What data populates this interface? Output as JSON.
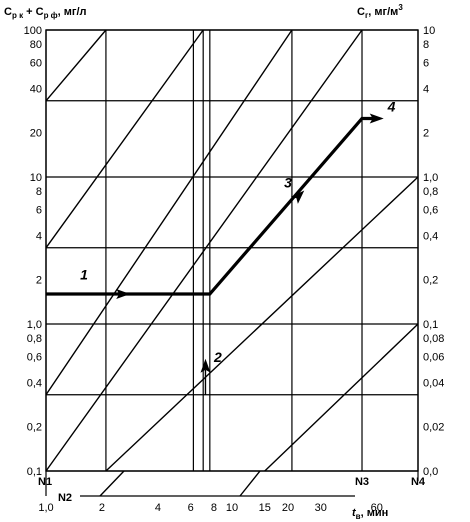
{
  "chart_data": {
    "type": "line",
    "left_axis": {
      "title_main": "C",
      "title_sub1": "р к",
      "title_plus": " + C",
      "title_sub2": "р ф",
      "title_unit": ", мг/л",
      "scale": "log",
      "range": [
        0.1,
        100
      ],
      "ticks": [
        {
          "v": 100,
          "label": "100"
        },
        {
          "v": 80,
          "label": "80"
        },
        {
          "v": 60,
          "label": "60"
        },
        {
          "v": 40,
          "label": "40"
        },
        {
          "v": 20,
          "label": "20"
        },
        {
          "v": 10,
          "label": "10"
        },
        {
          "v": 8,
          "label": "8"
        },
        {
          "v": 6,
          "label": "6"
        },
        {
          "v": 4,
          "label": "4"
        },
        {
          "v": 2,
          "label": "2"
        },
        {
          "v": 1,
          "label": "1,0"
        },
        {
          "v": 0.8,
          "label": "0,8"
        },
        {
          "v": 0.6,
          "label": "0,6"
        },
        {
          "v": 0.4,
          "label": "0,4"
        },
        {
          "v": 0.2,
          "label": "0,2"
        },
        {
          "v": 0.1,
          "label": "0,1"
        }
      ]
    },
    "right_axis": {
      "title_main": "C",
      "title_sub": "г",
      "title_unit": ", мг/м",
      "title_sup": "3",
      "ticks": [
        {
          "v": 100,
          "label": "10"
        },
        {
          "v": 80,
          "label": "8"
        },
        {
          "v": 60,
          "label": "6"
        },
        {
          "v": 40,
          "label": "4"
        },
        {
          "v": 20,
          "label": "2"
        },
        {
          "v": 10,
          "label": "1,0"
        },
        {
          "v": 8,
          "label": "0,8"
        },
        {
          "v": 6,
          "label": "0,6"
        },
        {
          "v": 4,
          "label": "0,4"
        },
        {
          "v": 2,
          "label": "0,2"
        },
        {
          "v": 1,
          "label": "0,1"
        },
        {
          "v": 0.8,
          "label": "0,08"
        },
        {
          "v": 0.6,
          "label": "0,06"
        },
        {
          "v": 0.4,
          "label": "0,04"
        },
        {
          "v": 0.2,
          "label": "0,02"
        },
        {
          "v": 0.1,
          "label": "0,0"
        }
      ]
    },
    "x_axis": {
      "title_main": "t",
      "title_sub": "в",
      "title_unit": ", мин",
      "scale": "log",
      "range": [
        1,
        100
      ],
      "ticks": [
        {
          "v": 1,
          "label": "1,0"
        },
        {
          "v": 2,
          "label": "2"
        },
        {
          "v": 4,
          "label": "4"
        },
        {
          "v": 6,
          "label": "6"
        },
        {
          "v": 8,
          "label": "8"
        },
        {
          "v": 10,
          "label": "10"
        },
        {
          "v": 15,
          "label": "15"
        },
        {
          "v": 20,
          "label": "20"
        },
        {
          "v": 30,
          "label": "30"
        },
        {
          "v": 60,
          "label": "60"
        }
      ]
    },
    "horizontal_grid": [
      0.1,
      0.33,
      1,
      3.3,
      10,
      33,
      100
    ],
    "vertical_grid": [
      1.0,
      2.1,
      6.2,
      7.0,
      7.6,
      21,
      50,
      100
    ],
    "diagonals": [
      {
        "x0": 1,
        "y0": 33,
        "x1": 2.1,
        "y1": 100
      },
      {
        "x0": 1,
        "y0": 3.3,
        "x1": 7.0,
        "y1": 100
      },
      {
        "x0": 1,
        "y0": 0.33,
        "x1": 21,
        "y1": 100
      },
      {
        "x0": 1,
        "y0": 0.1,
        "x1": 50,
        "y1": 100
      },
      {
        "x0": 2.1,
        "y0": 0.1,
        "x1": 100,
        "y1": 10
      },
      {
        "x0": 15,
        "y0": 0.1,
        "x1": 100,
        "y1": 1
      }
    ],
    "path": {
      "x": [
        1,
        7.6,
        50,
        60
      ],
      "y": [
        1.6,
        1.6,
        25,
        25
      ]
    },
    "arrows": [
      {
        "x": 2.6,
        "y": 1.6,
        "dir": "right"
      },
      {
        "x": 23,
        "y": 7.5,
        "dir": "up-right"
      },
      {
        "x": 60,
        "y": 25,
        "dir": "right"
      },
      {
        "x": 7.2,
        "y": 0.52,
        "dir": "up"
      }
    ],
    "curve_labels": [
      {
        "text": "1",
        "x": 1.6,
        "y": 2.0
      },
      {
        "text": "2",
        "x": 8.4,
        "y": 0.55
      },
      {
        "text": "3",
        "x": 20,
        "y": 8.5
      },
      {
        "text": "4",
        "x": 72,
        "y": 28
      }
    ],
    "node_labels": [
      {
        "text": "N1",
        "x": 1.0,
        "pos": "below"
      },
      {
        "text": "N2",
        "x": 1.0,
        "pos": "lower"
      },
      {
        "text": "N3",
        "x": 50,
        "pos": "below"
      },
      {
        "text": "N4",
        "x": 100,
        "pos": "below"
      }
    ],
    "grid": true,
    "legend": "none"
  }
}
